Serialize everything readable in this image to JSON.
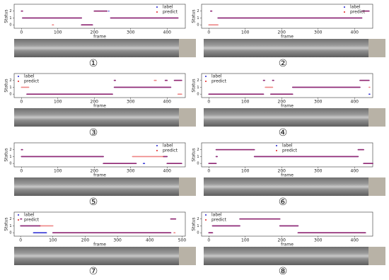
{
  "chart_data": [
    {
      "type": "line",
      "xlabel": "frame",
      "ylabel": "Status",
      "caption": "①",
      "legend": "upper right",
      "xlim": [
        -20,
        450
      ],
      "ylim": [
        -0.5,
        3
      ],
      "xticks": [
        0,
        100,
        200,
        300,
        400
      ],
      "yticks": [
        0,
        1,
        2
      ],
      "x": [
        0,
        3,
        3,
        3,
        165,
        165,
        85,
        88,
        88,
        165,
        195,
        195,
        200,
        235,
        235,
        240,
        240,
        240,
        245,
        430
      ],
      "series": [
        {
          "name": "label",
          "color": "#1f1fd0",
          "values": [
            2,
            2,
            null,
            1,
            1,
            null,
            null,
            null,
            null,
            0,
            0,
            null,
            2,
            2,
            null,
            2,
            2,
            null,
            1,
            1
          ]
        },
        {
          "name": "predict",
          "color": "#e02020",
          "values": [
            2,
            2,
            null,
            1,
            1,
            null,
            0,
            0,
            null,
            0,
            0,
            null,
            2,
            2,
            null,
            null,
            null,
            null,
            1,
            1
          ]
        }
      ]
    },
    {
      "type": "line",
      "xlabel": "frame",
      "ylabel": "Status",
      "caption": "②",
      "legend": "upper right",
      "xlim": [
        -20,
        450
      ],
      "ylim": [
        -0.5,
        3
      ],
      "xticks": [
        0,
        100,
        200,
        300,
        400
      ],
      "yticks": [
        0,
        1,
        2
      ],
      "x": [
        5,
        8,
        8,
        0,
        25,
        25,
        25,
        420,
        420,
        420,
        440
      ],
      "series": [
        {
          "name": "label",
          "color": "#1f1fd0",
          "values": [
            2,
            2,
            null,
            null,
            null,
            null,
            1,
            1,
            null,
            2,
            2
          ]
        },
        {
          "name": "predict",
          "color": "#e02020",
          "values": [
            2,
            2,
            null,
            0,
            0,
            null,
            1,
            1,
            null,
            2,
            2
          ]
        }
      ]
    },
    {
      "type": "line",
      "xlabel": "frame",
      "ylabel": "Status",
      "caption": "③",
      "legend": "upper left",
      "xlim": [
        -20,
        450
      ],
      "ylim": [
        -0.5,
        3
      ],
      "xticks": [
        0,
        100,
        200,
        300,
        400
      ],
      "yticks": [
        0,
        1,
        2
      ],
      "x": [
        0,
        20,
        20,
        15,
        250,
        250,
        255,
        258,
        258,
        255,
        410,
        410,
        365,
        370,
        370,
        395,
        400,
        400,
        420,
        440,
        440,
        430,
        440
      ],
      "series": [
        {
          "name": "label",
          "color": "#1f1fd0",
          "values": [
            null,
            null,
            null,
            0,
            0,
            null,
            2,
            2,
            null,
            1,
            1,
            null,
            null,
            null,
            null,
            2,
            2,
            null,
            2,
            2,
            null,
            null,
            null
          ]
        },
        {
          "name": "predict",
          "color": "#e02020",
          "values": [
            1,
            1,
            null,
            0,
            0,
            null,
            2,
            2,
            null,
            1,
            1,
            null,
            2,
            2,
            null,
            2,
            2,
            null,
            2,
            2,
            null,
            0,
            0
          ]
        }
      ]
    },
    {
      "type": "line",
      "xlabel": "frame",
      "ylabel": "Status",
      "caption": "④",
      "legend": "upper left",
      "xlim": [
        -20,
        450
      ],
      "ylim": [
        -0.5,
        3
      ],
      "xticks": [
        0,
        100,
        200,
        300,
        400
      ],
      "yticks": [
        0,
        1,
        2
      ],
      "x": [
        0,
        150,
        150,
        150,
        153,
        153,
        175,
        178,
        178,
        155,
        175,
        175,
        170,
        230,
        230,
        230,
        415,
        415,
        415,
        440,
        440,
        440,
        442,
        442,
        440,
        442
      ],
      "series": [
        {
          "name": "label",
          "color": "#1f1fd0",
          "values": [
            0,
            0,
            null,
            2,
            2,
            null,
            2,
            2,
            null,
            null,
            null,
            null,
            0,
            0,
            null,
            1,
            1,
            null,
            2,
            2,
            null,
            null,
            null,
            null,
            0,
            0
          ]
        },
        {
          "name": "predict",
          "color": "#e02020",
          "values": [
            0,
            0,
            null,
            2,
            2,
            null,
            2,
            2,
            null,
            1,
            1,
            null,
            0,
            0,
            null,
            1,
            1,
            null,
            2,
            2,
            null,
            1,
            1,
            null,
            null,
            null
          ]
        }
      ]
    },
    {
      "type": "line",
      "xlabel": "frame",
      "ylabel": "Status",
      "caption": "⑤",
      "legend": "upper right",
      "xlim": [
        -20,
        450
      ],
      "ylim": [
        -0.5,
        3
      ],
      "xticks": [
        0,
        100,
        200,
        300,
        400
      ],
      "yticks": [
        0,
        1,
        2
      ],
      "x": [
        0,
        3,
        3,
        0,
        225,
        225,
        225,
        315,
        315,
        305,
        390,
        390,
        335,
        338,
        338,
        390,
        400,
        400,
        400,
        440
      ],
      "series": [
        {
          "name": "label",
          "color": "#1f1fd0",
          "values": [
            2,
            2,
            null,
            1,
            1,
            null,
            0,
            0,
            null,
            null,
            null,
            null,
            0,
            0,
            null,
            1,
            1,
            null,
            0,
            0
          ]
        },
        {
          "name": "predict",
          "color": "#e02020",
          "values": [
            2,
            2,
            null,
            1,
            1,
            null,
            0,
            0,
            null,
            1,
            1,
            null,
            null,
            null,
            null,
            1,
            1,
            null,
            0,
            0
          ]
        }
      ]
    },
    {
      "type": "line",
      "xlabel": "frame",
      "ylabel": "Status",
      "caption": "⑥",
      "legend": "upper center",
      "xlim": [
        -20,
        450
      ],
      "ylim": [
        -0.5,
        3
      ],
      "xticks": [
        0,
        100,
        200,
        300,
        400
      ],
      "yticks": [
        0,
        1,
        2
      ],
      "x": [
        0,
        20,
        20,
        20,
        23,
        23,
        20,
        125,
        125,
        125,
        410,
        410,
        410,
        425,
        425,
        425,
        450
      ],
      "series": [
        {
          "name": "label",
          "color": "#1f1fd0",
          "values": [
            0,
            0,
            null,
            1,
            1,
            null,
            2,
            2,
            null,
            1,
            1,
            null,
            2,
            2,
            null,
            0,
            0
          ]
        },
        {
          "name": "predict",
          "color": "#e02020",
          "values": [
            0,
            0,
            null,
            1,
            1,
            null,
            2,
            2,
            null,
            1,
            1,
            null,
            2,
            2,
            null,
            0,
            0
          ]
        }
      ]
    },
    {
      "type": "line",
      "xlabel": "frame",
      "ylabel": "Status",
      "caption": "⑦",
      "legend": "upper left",
      "xlim": [
        -20,
        510
      ],
      "ylim": [
        -0.5,
        3
      ],
      "xticks": [
        0,
        100,
        200,
        300,
        400,
        500
      ],
      "yticks": [
        0,
        1,
        2
      ],
      "x": [
        0,
        3,
        3,
        0,
        60,
        60,
        60,
        100,
        100,
        40,
        80,
        80,
        100,
        465,
        465,
        465,
        480,
        480,
        475,
        478
      ],
      "series": [
        {
          "name": "label",
          "color": "#1f1fd0",
          "values": [
            2,
            2,
            null,
            1,
            1,
            null,
            null,
            null,
            null,
            0,
            0,
            null,
            0,
            0,
            null,
            2,
            2,
            null,
            null,
            null
          ]
        },
        {
          "name": "predict",
          "color": "#e02020",
          "values": [
            2,
            2,
            null,
            1,
            1,
            null,
            1,
            1,
            null,
            null,
            null,
            null,
            0,
            0,
            null,
            2,
            2,
            null,
            0,
            0
          ]
        }
      ]
    },
    {
      "type": "line",
      "xlabel": "frame",
      "ylabel": "Status",
      "caption": "⑧",
      "legend": "upper left",
      "xlim": [
        -20,
        450
      ],
      "ylim": [
        -0.5,
        3
      ],
      "xticks": [
        0,
        100,
        200,
        300,
        400
      ],
      "yticks": [
        0,
        1,
        2
      ],
      "x": [
        0,
        10,
        10,
        10,
        85,
        85,
        85,
        195,
        195,
        195,
        245,
        245,
        245,
        430
      ],
      "series": [
        {
          "name": "label",
          "color": "#1f1fd0",
          "values": [
            0,
            0,
            null,
            1,
            1,
            null,
            2,
            2,
            null,
            1,
            1,
            null,
            0,
            0
          ]
        },
        {
          "name": "predict",
          "color": "#e02020",
          "values": [
            0,
            0,
            null,
            1,
            1,
            null,
            2,
            2,
            null,
            1,
            1,
            null,
            0,
            0
          ]
        }
      ]
    }
  ]
}
